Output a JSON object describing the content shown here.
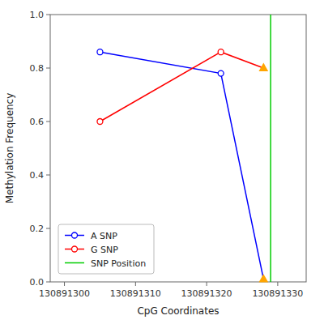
{
  "chart_data": {
    "type": "line",
    "xlabel": "CpG Coordinates",
    "ylabel": "Methylation Frequency",
    "x": [
      130891305,
      130891322,
      130891328
    ],
    "series": [
      {
        "name": "A SNP",
        "color": "blue",
        "marker": "circle",
        "values": [
          0.86,
          0.78,
          0.01
        ]
      },
      {
        "name": "G SNP",
        "color": "red",
        "marker": "circle",
        "values": [
          0.6,
          0.86,
          0.8
        ]
      },
      {
        "name": "SNP Position",
        "type": "vline",
        "color": "#00cc00",
        "x": 130891329
      }
    ],
    "color": "#FFA500",
    "xlim": [
      130891298,
      130891334
    ],
    "ylim": [
      0.0,
      1.0
    ],
    "xticks": [
      130891300,
      130891310,
      130891320,
      130891330
    ],
    "yticks": [
      {
        "value": 0.0,
        "label": "0.0"
      },
      0.2,
      0.4,
      0.6,
      0.8,
      {
        "value": 1.0,
        "label": "1.0"
      }
    ],
    "grid": false,
    "legend": "lower left"
  }
}
